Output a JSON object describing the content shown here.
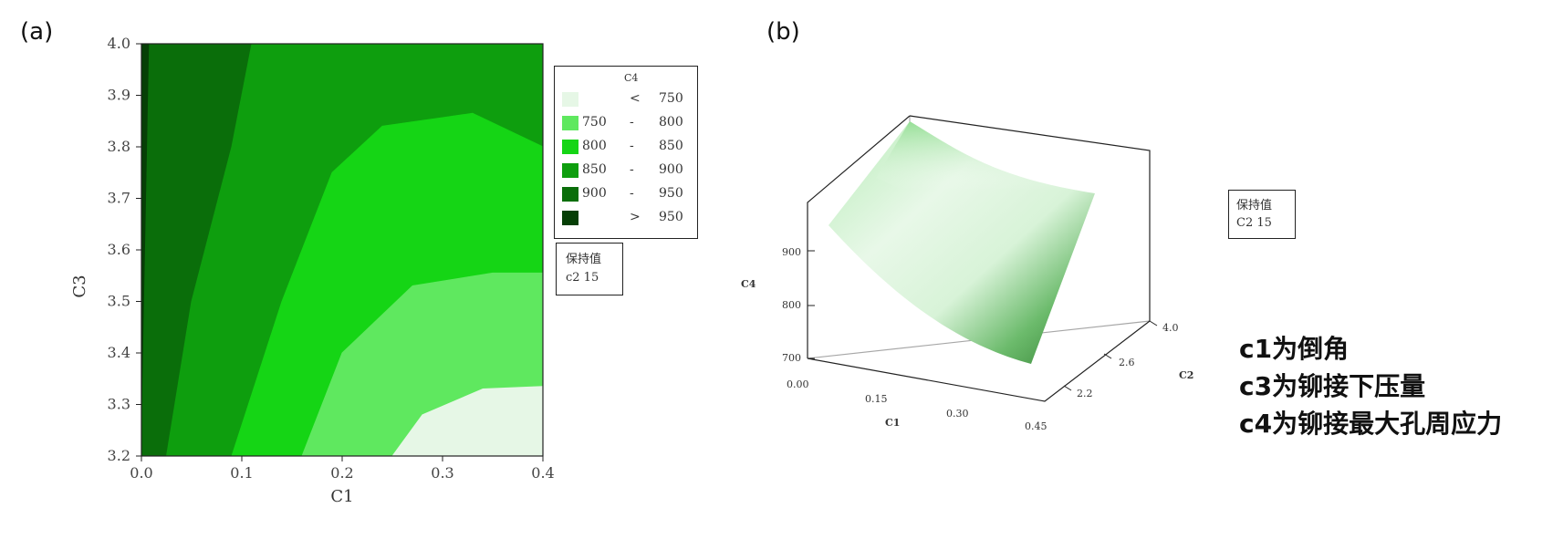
{
  "panels": {
    "a_label": "(a)",
    "b_label": "(b)"
  },
  "chart_data": [
    {
      "type": "contour",
      "panel": "(a)",
      "xlabel": "C1",
      "ylabel": "C3",
      "xlim": [
        0.0,
        0.4
      ],
      "ylim": [
        3.2,
        4.0
      ],
      "xticks": [
        "0.0",
        "0.1",
        "0.2",
        "0.3",
        "0.4"
      ],
      "yticks": [
        "3.2",
        "3.3",
        "3.4",
        "3.5",
        "3.6",
        "3.7",
        "3.8",
        "3.9",
        "4.0"
      ],
      "legend": {
        "title": "C4",
        "placement": "right",
        "entries": [
          {
            "op_left": "",
            "op": "<",
            "high": "750",
            "color": "#e6f7e6"
          },
          {
            "op_left": "750",
            "op": "-",
            "high": "800",
            "color": "#5fe85f"
          },
          {
            "op_left": "800",
            "op": "-",
            "high": "850",
            "color": "#15d515"
          },
          {
            "op_left": "850",
            "op": "-",
            "high": "900",
            "color": "#0e9e0e"
          },
          {
            "op_left": "900",
            "op": "-",
            "high": "950",
            "color": "#0a6e0a"
          },
          {
            "op_left": "",
            "op": ">",
            "high": "950",
            "color": "#063f06"
          }
        ]
      },
      "hold": {
        "title": "保持值",
        "value": "c2 15"
      },
      "regions": [
        {
          "level": "> 950",
          "color": "#063f06",
          "boundary": [
            [
              0.0,
              3.2
            ],
            [
              0.0,
              4.0
            ],
            [
              0.008,
              4.0
            ],
            [
              0.004,
              3.6
            ],
            [
              0.0,
              3.2
            ]
          ]
        },
        {
          "level": "900 - 950",
          "color": "#0a6e0a",
          "boundary": [
            [
              0.004,
              3.6
            ],
            [
              0.008,
              4.0
            ],
            [
              0.11,
              4.0
            ],
            [
              0.09,
              3.8
            ],
            [
              0.05,
              3.5
            ],
            [
              0.025,
              3.2
            ],
            [
              0.0,
              3.2
            ]
          ]
        },
        {
          "level": "850 - 900",
          "color": "#0e9e0e",
          "boundary": [
            [
              0.11,
              4.0
            ],
            [
              0.4,
              4.0
            ],
            [
              0.4,
              3.8
            ],
            [
              0.33,
              3.865
            ],
            [
              0.24,
              3.84
            ],
            [
              0.19,
              3.75
            ],
            [
              0.14,
              3.5
            ],
            [
              0.09,
              3.2
            ],
            [
              0.025,
              3.2
            ],
            [
              0.05,
              3.5
            ],
            [
              0.09,
              3.8
            ]
          ]
        },
        {
          "level": "800 - 850",
          "color": "#15d515",
          "boundary": [
            [
              0.4,
              3.8
            ],
            [
              0.33,
              3.865
            ],
            [
              0.24,
              3.84
            ],
            [
              0.19,
              3.75
            ],
            [
              0.14,
              3.5
            ],
            [
              0.09,
              3.2
            ],
            [
              0.16,
              3.2
            ],
            [
              0.2,
              3.4
            ],
            [
              0.27,
              3.53
            ],
            [
              0.35,
              3.555
            ],
            [
              0.4,
              3.555
            ]
          ]
        },
        {
          "level": "750 - 800",
          "color": "#5fe85f",
          "boundary": [
            [
              0.16,
              3.2
            ],
            [
              0.2,
              3.4
            ],
            [
              0.27,
              3.53
            ],
            [
              0.35,
              3.555
            ],
            [
              0.4,
              3.555
            ],
            [
              0.4,
              3.335
            ],
            [
              0.34,
              3.33
            ],
            [
              0.28,
              3.28
            ],
            [
              0.25,
              3.2
            ]
          ]
        },
        {
          "level": "< 750",
          "color": "#e6f7e6",
          "boundary": [
            [
              0.25,
              3.2
            ],
            [
              0.28,
              3.28
            ],
            [
              0.34,
              3.33
            ],
            [
              0.4,
              3.335
            ],
            [
              0.4,
              3.2
            ]
          ]
        }
      ]
    },
    {
      "type": "surface",
      "panel": "(b)",
      "xlabel": "C1",
      "ylabel": "C2",
      "zlabel": "C4",
      "xticks": [
        "0.00",
        "0.15",
        "0.30",
        "0.45"
      ],
      "yticks": [
        "2.2",
        "2.6",
        "4.0"
      ],
      "zticks": [
        "700",
        "800",
        "900"
      ],
      "hold": {
        "title": "保持值",
        "value": "C2 15"
      }
    }
  ],
  "notes": {
    "line1": "c1为倒角",
    "line2": "c3为铆接下压量",
    "line3": "c4为铆接最大孔周应力"
  }
}
